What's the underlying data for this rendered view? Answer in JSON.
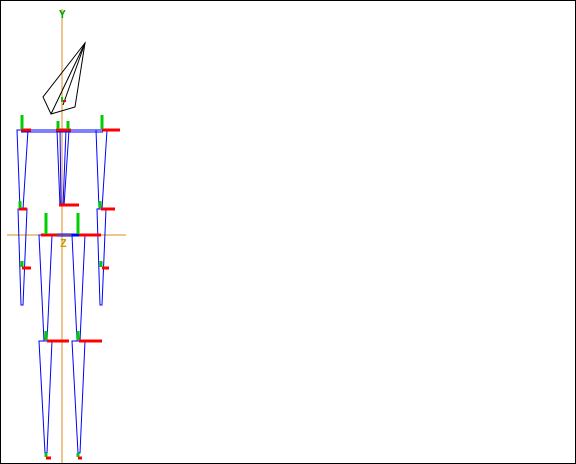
{
  "viewport": {
    "background": "#ffffff",
    "border_color": "#000000"
  },
  "axes": {
    "vertical_label": "Y",
    "horizontal_label": "Z",
    "axis_color": "#e08a1e",
    "vertical_label_color": "#00aa00",
    "horizontal_label_color": "#c8a000"
  },
  "colors": {
    "bone_outline": "#0000ff",
    "bone_inner": "#2244aa",
    "joint_marker_x": "#ff0000",
    "joint_marker_y": "#00cc00",
    "camera_outline": "#000000"
  },
  "camera": {
    "icon": "camera-frustum-icon"
  }
}
